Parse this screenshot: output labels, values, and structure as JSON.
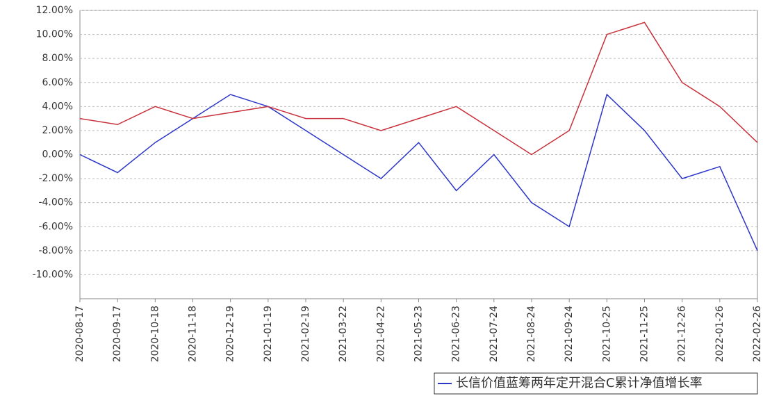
{
  "chart_data": {
    "type": "line",
    "categories": [
      "2020-08-17",
      "2020-09-17",
      "2020-10-18",
      "2020-11-18",
      "2020-12-19",
      "2021-01-19",
      "2021-02-19",
      "2021-03-22",
      "2021-04-22",
      "2021-05-23",
      "2021-06-23",
      "2021-07-24",
      "2021-08-24",
      "2021-09-24",
      "2021-10-25",
      "2021-11-25",
      "2021-12-26",
      "2022-01-26",
      "2022-02-26"
    ],
    "series": [
      {
        "name": "长信价值蓝筹两年定开混合C累计净值增长率",
        "color": "#2b35c8",
        "values": [
          0,
          -1.5,
          1,
          3,
          5,
          4,
          2,
          0,
          -2,
          1,
          -3,
          0,
          -4,
          -6,
          5,
          2,
          -2,
          -1,
          -8
        ]
      },
      {
        "color": "#c8303a",
        "values": [
          3,
          2.5,
          4,
          3,
          3.5,
          4,
          3,
          3,
          2,
          3,
          4,
          2,
          0,
          2,
          10,
          11,
          6,
          4,
          1
        ]
      }
    ],
    "ylim": [
      -12,
      12
    ],
    "yticks": [
      {
        "value": -10,
        "label": "-10.00%"
      },
      {
        "value": -8,
        "label": "-8.00%"
      },
      {
        "value": -6,
        "label": "-6.00%"
      },
      {
        "value": -4,
        "label": "-4.00%"
      },
      {
        "value": -2,
        "label": "-2.00%"
      },
      {
        "value": 0,
        "label": "0.00%"
      },
      {
        "value": 2,
        "label": "2.00%"
      },
      {
        "value": 4,
        "label": "4.00%"
      },
      {
        "value": 6,
        "label": "6.00%"
      },
      {
        "value": 8,
        "label": "8.00%"
      },
      {
        "value": 10,
        "label": "10.00%"
      },
      {
        "value": 12,
        "label": "12.00%"
      }
    ],
    "grid": true
  }
}
